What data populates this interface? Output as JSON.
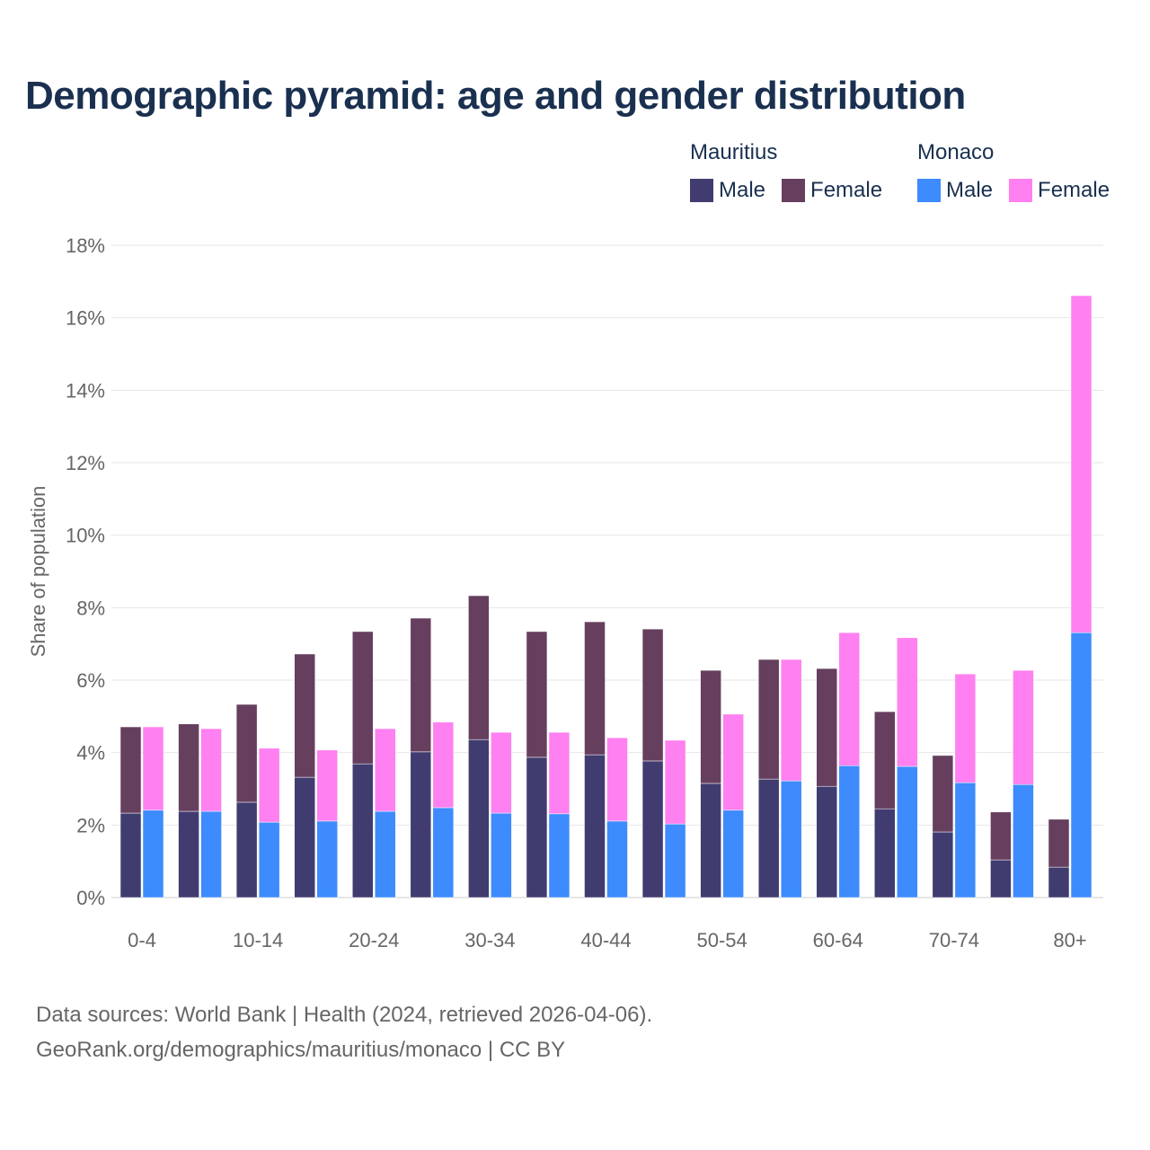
{
  "chart_data": {
    "type": "bar",
    "stacked": true,
    "title": "Demographic pyramid: age and gender distribution",
    "xlabel": "",
    "ylabel": "Share of population",
    "ylim": [
      0,
      18
    ],
    "yticks": [
      "0%",
      "2%",
      "4%",
      "6%",
      "8%",
      "10%",
      "12%",
      "14%",
      "16%",
      "18%"
    ],
    "grid": true,
    "legend_position": "top-right",
    "categories": [
      "0-4",
      "5-9",
      "10-14",
      "15-19",
      "20-24",
      "25-29",
      "30-34",
      "35-39",
      "40-44",
      "45-49",
      "50-54",
      "55-59",
      "60-64",
      "65-69",
      "70-74",
      "75-79",
      "80+"
    ],
    "xtick_labels_shown": [
      "0-4",
      "10-14",
      "20-24",
      "30-34",
      "40-44",
      "50-54",
      "60-64",
      "70-74",
      "80+"
    ],
    "countries": [
      {
        "name": "Mauritius",
        "series": [
          {
            "name": "Male",
            "color": "#413c6f",
            "values": [
              2.33,
              2.38,
              2.63,
              3.32,
              3.69,
              4.02,
              4.36,
              3.87,
              3.94,
              3.77,
              3.15,
              3.27,
              3.07,
              2.45,
              1.81,
              1.04,
              0.84
            ]
          },
          {
            "name": "Female",
            "color": "#663f5f",
            "values": [
              2.38,
              2.41,
              2.7,
              3.4,
              3.65,
              3.69,
              3.97,
              3.47,
              3.67,
              3.64,
              3.12,
              3.3,
              3.25,
              2.68,
              2.11,
              1.32,
              1.32
            ]
          }
        ]
      },
      {
        "name": "Monaco",
        "series": [
          {
            "name": "Male",
            "color": "#3d8bfd",
            "values": [
              2.41,
              2.38,
              2.08,
              2.11,
              2.38,
              2.48,
              2.33,
              2.31,
              2.11,
              2.03,
              2.41,
              3.22,
              3.64,
              3.62,
              3.17,
              3.12,
              7.31
            ]
          },
          {
            "name": "Female",
            "color": "#ff80f0",
            "values": [
              2.3,
              2.28,
              2.04,
              1.96,
              2.28,
              2.36,
              2.23,
              2.25,
              2.3,
              2.31,
              2.65,
              3.35,
              3.67,
              3.55,
              3.0,
              3.15,
              9.3
            ]
          }
        ]
      }
    ]
  },
  "source_line1": "Data sources: World Bank | Health (2024, retrieved 2026-04-06).",
  "source_line2": "GeoRank.org/demographics/mauritius/monaco | CC BY"
}
